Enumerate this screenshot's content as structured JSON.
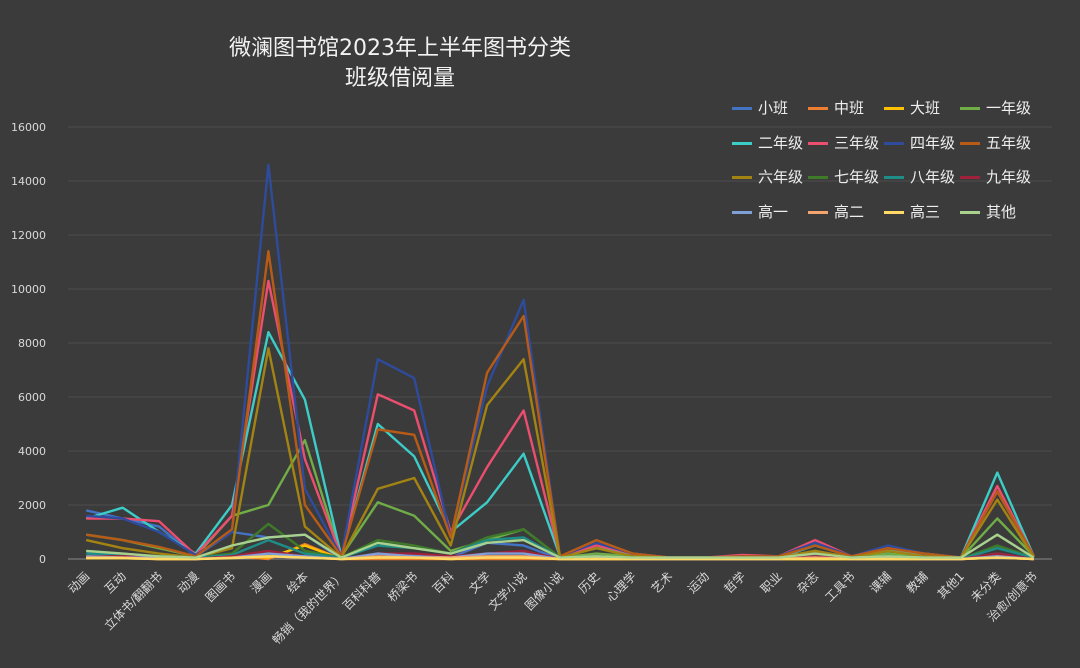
{
  "chart_data": {
    "type": "line",
    "title": "微澜图书馆2023年上半年图书分类",
    "subtitle": "班级借阅量",
    "ylim": [
      0,
      16000
    ],
    "yticks": [
      0,
      2000,
      4000,
      6000,
      8000,
      10000,
      12000,
      14000,
      16000
    ],
    "grid": true,
    "legend_position": "top-right",
    "categories": [
      "动画",
      "互动",
      "立体书/翻翻书",
      "动漫",
      "图画书",
      "漫画",
      "绘本",
      "畅销（我的世界）",
      "百科科普",
      "桥梁书",
      "百科",
      "文学",
      "文学小说",
      "图像小说",
      "历史",
      "心理学",
      "艺术",
      "运动",
      "哲学",
      "职业",
      "杂志",
      "工具书",
      "课辅",
      "教辅",
      "其他1",
      "未分类",
      "治愈/创意书"
    ],
    "series": [
      {
        "name": "小班",
        "color": "#4472c4",
        "values": [
          1800,
          1500,
          1200,
          100,
          1000,
          800,
          900,
          0,
          200,
          150,
          50,
          600,
          500,
          0,
          100,
          0,
          0,
          0,
          0,
          0,
          50,
          0,
          0,
          0,
          0,
          200,
          0
        ]
      },
      {
        "name": "中班",
        "color": "#ed7d31",
        "values": [
          50,
          50,
          0,
          0,
          100,
          0,
          550,
          0,
          0,
          0,
          0,
          0,
          0,
          0,
          0,
          0,
          0,
          0,
          0,
          0,
          0,
          0,
          0,
          0,
          0,
          100,
          0
        ]
      },
      {
        "name": "大班",
        "color": "#ffc000",
        "values": [
          30,
          30,
          0,
          0,
          100,
          50,
          500,
          0,
          50,
          50,
          0,
          50,
          50,
          0,
          0,
          0,
          0,
          0,
          0,
          0,
          0,
          0,
          0,
          0,
          0,
          50,
          0
        ]
      },
      {
        "name": "一年级",
        "color": "#70ad47",
        "values": [
          900,
          700,
          400,
          100,
          1600,
          2000,
          4400,
          100,
          2100,
          1600,
          300,
          700,
          1100,
          50,
          200,
          100,
          50,
          50,
          50,
          50,
          300,
          50,
          200,
          100,
          30,
          1500,
          100
        ]
      },
      {
        "name": "二年级",
        "color": "#3ccdc8",
        "values": [
          1500,
          1900,
          1000,
          200,
          2000,
          8400,
          5900,
          100,
          5000,
          3800,
          1000,
          2100,
          3900,
          100,
          400,
          200,
          50,
          50,
          100,
          50,
          500,
          100,
          300,
          200,
          50,
          3200,
          100
        ]
      },
      {
        "name": "三年级",
        "color": "#ec4e6f",
        "values": [
          1500,
          1500,
          1400,
          150,
          1600,
          10300,
          3700,
          100,
          6100,
          5500,
          1000,
          3400,
          5500,
          100,
          500,
          200,
          50,
          50,
          150,
          100,
          700,
          100,
          400,
          200,
          50,
          2700,
          100
        ]
      },
      {
        "name": "四年级",
        "color": "#2e4b9c",
        "values": [
          1600,
          1500,
          1000,
          150,
          1000,
          14600,
          2600,
          100,
          7400,
          6700,
          800,
          6400,
          9600,
          100,
          600,
          200,
          50,
          50,
          100,
          100,
          600,
          100,
          500,
          200,
          50,
          2500,
          100
        ]
      },
      {
        "name": "五年级",
        "color": "#b85b16",
        "values": [
          900,
          700,
          450,
          100,
          1100,
          11400,
          2000,
          100,
          4800,
          4600,
          800,
          6900,
          9000,
          100,
          700,
          200,
          50,
          50,
          100,
          100,
          500,
          100,
          400,
          200,
          50,
          2500,
          100
        ]
      },
      {
        "name": "六年级",
        "color": "#a38312",
        "values": [
          700,
          400,
          200,
          50,
          400,
          7800,
          1200,
          50,
          2600,
          3000,
          500,
          5700,
          7400,
          50,
          400,
          100,
          50,
          50,
          50,
          50,
          300,
          50,
          300,
          100,
          50,
          2200,
          50
        ]
      },
      {
        "name": "七年级",
        "color": "#3f7a2a",
        "values": [
          300,
          200,
          100,
          50,
          200,
          1300,
          300,
          50,
          700,
          500,
          200,
          800,
          1100,
          50,
          100,
          50,
          0,
          0,
          50,
          0,
          200,
          50,
          100,
          50,
          0,
          500,
          50
        ]
      },
      {
        "name": "八年级",
        "color": "#1f8d87",
        "values": [
          200,
          150,
          100,
          50,
          150,
          700,
          200,
          50,
          500,
          400,
          200,
          700,
          800,
          50,
          100,
          50,
          0,
          0,
          50,
          0,
          150,
          50,
          100,
          50,
          0,
          400,
          50
        ]
      },
      {
        "name": "九年级",
        "color": "#a0223a",
        "values": [
          100,
          100,
          50,
          0,
          100,
          300,
          100,
          0,
          200,
          200,
          100,
          200,
          300,
          0,
          50,
          0,
          0,
          0,
          0,
          0,
          100,
          0,
          50,
          0,
          0,
          200,
          0
        ]
      },
      {
        "name": "高一",
        "color": "#7f9fd8",
        "values": [
          100,
          50,
          50,
          0,
          50,
          200,
          100,
          0,
          200,
          100,
          50,
          200,
          200,
          0,
          50,
          0,
          0,
          0,
          0,
          0,
          50,
          0,
          50,
          0,
          0,
          100,
          0
        ]
      },
      {
        "name": "高二",
        "color": "#f4a56d",
        "values": [
          50,
          50,
          0,
          0,
          50,
          100,
          50,
          0,
          100,
          50,
          50,
          100,
          100,
          0,
          0,
          0,
          0,
          0,
          0,
          0,
          50,
          0,
          0,
          0,
          0,
          50,
          0
        ]
      },
      {
        "name": "高三",
        "color": "#ffd966",
        "values": [
          30,
          30,
          0,
          0,
          30,
          100,
          50,
          0,
          50,
          50,
          0,
          50,
          50,
          0,
          0,
          0,
          0,
          0,
          0,
          0,
          0,
          0,
          0,
          0,
          0,
          50,
          0
        ]
      },
      {
        "name": "其他",
        "color": "#a9d18e",
        "values": [
          300,
          200,
          100,
          50,
          500,
          800,
          900,
          50,
          600,
          400,
          200,
          600,
          700,
          50,
          100,
          50,
          50,
          50,
          50,
          50,
          200,
          50,
          100,
          50,
          50,
          900,
          50
        ]
      }
    ]
  }
}
